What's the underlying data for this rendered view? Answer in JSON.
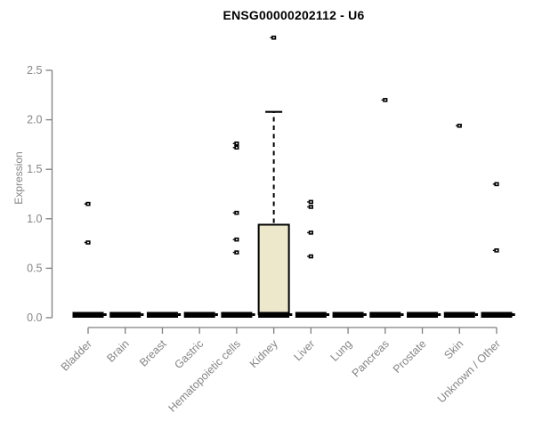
{
  "chart_data": {
    "type": "boxplot",
    "title": "ENSG00000202112 - U6",
    "ylabel": "Expression",
    "xlabel": "",
    "ylim": [
      0,
      2.5
    ],
    "yticks": [
      0.0,
      0.5,
      1.0,
      1.5,
      2.0,
      2.5
    ],
    "ytick_labels": [
      "0.0",
      "0.5",
      "1.0",
      "1.5",
      "2.0",
      "2.5"
    ],
    "grid": "off",
    "legend": "none",
    "categories": [
      "Bladder",
      "Brain",
      "Breast",
      "Gastric",
      "Hematopoietic cells",
      "Kidney",
      "Liver",
      "Lung",
      "Pancreas",
      "Prostate",
      "Skin",
      "Unknown / Other"
    ],
    "boxes": [
      {
        "category": "Bladder",
        "median": 0,
        "q1": 0,
        "q3": 0,
        "whisker_low": 0,
        "whisker_high": 0,
        "outliers": [
          0.76,
          1.15
        ]
      },
      {
        "category": "Brain",
        "median": 0,
        "q1": 0,
        "q3": 0,
        "whisker_low": 0,
        "whisker_high": 0,
        "outliers": []
      },
      {
        "category": "Breast",
        "median": 0,
        "q1": 0,
        "q3": 0,
        "whisker_low": 0,
        "whisker_high": 0,
        "outliers": []
      },
      {
        "category": "Gastric",
        "median": 0,
        "q1": 0,
        "q3": 0,
        "whisker_low": 0,
        "whisker_high": 0,
        "outliers": []
      },
      {
        "category": "Hematopoietic cells",
        "median": 0,
        "q1": 0,
        "q3": 0,
        "whisker_low": 0,
        "whisker_high": 0,
        "outliers": [
          0.66,
          0.79,
          1.06,
          1.72,
          1.76
        ]
      },
      {
        "category": "Kidney",
        "median": 0,
        "q1": 0,
        "q3": 0.94,
        "whisker_low": 0,
        "whisker_high": 2.08,
        "outliers": [
          2.83
        ]
      },
      {
        "category": "Liver",
        "median": 0,
        "q1": 0,
        "q3": 0,
        "whisker_low": 0,
        "whisker_high": 0,
        "outliers": [
          0.62,
          0.86,
          1.12,
          1.17
        ]
      },
      {
        "category": "Lung",
        "median": 0,
        "q1": 0,
        "q3": 0,
        "whisker_low": 0,
        "whisker_high": 0,
        "outliers": []
      },
      {
        "category": "Pancreas",
        "median": 0,
        "q1": 0,
        "q3": 0,
        "whisker_low": 0,
        "whisker_high": 0,
        "outliers": [
          2.2
        ]
      },
      {
        "category": "Prostate",
        "median": 0,
        "q1": 0,
        "q3": 0,
        "whisker_low": 0,
        "whisker_high": 0,
        "outliers": []
      },
      {
        "category": "Skin",
        "median": 0,
        "q1": 0,
        "q3": 0,
        "whisker_low": 0,
        "whisker_high": 0,
        "outliers": [
          1.94
        ]
      },
      {
        "category": "Unknown / Other",
        "median": 0,
        "q1": 0,
        "q3": 0,
        "whisker_low": 0,
        "whisker_high": 0,
        "outliers": [
          0.68,
          1.35
        ]
      }
    ],
    "colors": {
      "box_fill": "#ede7cc",
      "box_border": "#000000",
      "zero_bar": "#000000",
      "whisker": "#000000",
      "outlier_point": "#000000",
      "axis_line": "#7f7f7f",
      "tick_label": "#858585",
      "title_text": "#000000"
    }
  }
}
